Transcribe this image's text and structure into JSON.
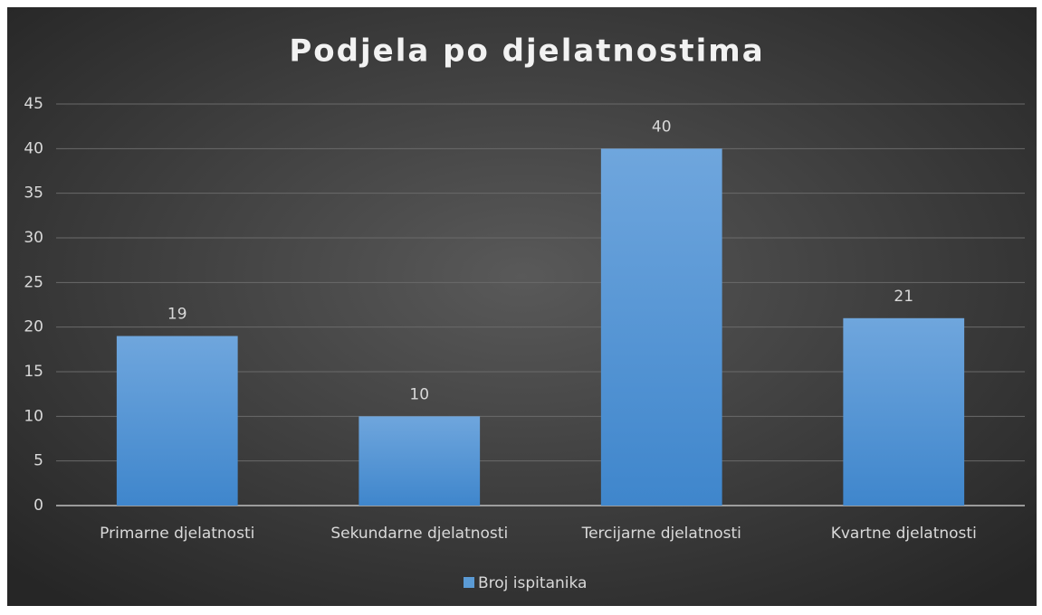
{
  "chart_data": {
    "type": "bar",
    "title": "Podjela po djelatnostima",
    "categories": [
      "Primarne djelatnosti",
      "Sekundarne djelatnosti",
      "Tercijarne djelatnosti",
      "Kvartne djelatnosti"
    ],
    "series": [
      {
        "name": "Broj ispitanika",
        "color": "#5b9bd5",
        "values": [
          19,
          10,
          40,
          21
        ]
      }
    ],
    "ylim": [
      0,
      45
    ],
    "yticks": [
      0,
      5,
      10,
      15,
      20,
      25,
      30,
      35,
      40,
      45
    ],
    "grid": true,
    "legend": "bottom"
  }
}
